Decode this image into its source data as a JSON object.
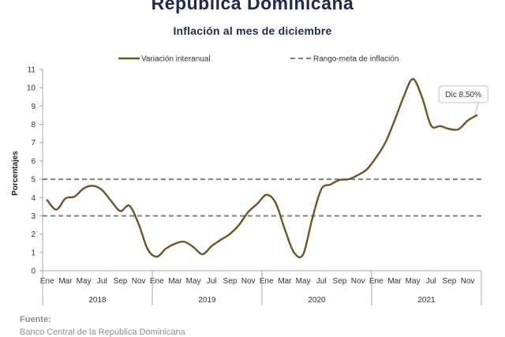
{
  "header": {
    "title": "República Dominicana",
    "subtitle": "Inflación al mes de diciembre"
  },
  "footer": {
    "source_label": "Fuente:",
    "source_text": "Banco Central de la República Dominicana"
  },
  "colors": {
    "series": "#6e5427",
    "target": "#808080",
    "axis": "#a6a6a6",
    "title": "#1f2a4e"
  },
  "chart_data": {
    "type": "line",
    "ylabel": "Porcentajes",
    "ylim": [
      0,
      11
    ],
    "yticks": [
      0,
      1,
      2,
      3,
      4,
      5,
      6,
      7,
      8,
      9,
      10,
      11
    ],
    "grid": false,
    "legend_position": "top",
    "x_month_labels": [
      "Ene",
      "Mar",
      "May",
      "Jul",
      "Sep",
      "Nov"
    ],
    "years": [
      "2018",
      "2019",
      "2020",
      "2021"
    ],
    "series": [
      {
        "name": "Variación interanual",
        "style": "solid",
        "values": [
          3.86,
          3.34,
          3.95,
          4.05,
          4.5,
          4.64,
          4.41,
          3.81,
          3.26,
          3.55,
          2.56,
          1.17,
          0.77,
          1.21,
          1.48,
          1.58,
          1.29,
          0.9,
          1.35,
          1.69,
          2.01,
          2.51,
          3.21,
          3.66,
          4.15,
          3.7,
          2.26,
          1.0,
          0.89,
          2.84,
          4.46,
          4.71,
          4.96,
          5.0,
          5.23,
          5.55,
          6.2,
          7.0,
          8.2,
          9.5,
          10.48,
          9.5,
          7.94,
          7.9,
          7.75,
          7.73,
          8.2,
          8.5
        ]
      },
      {
        "name": "Rango-meta de inflación",
        "style": "dashed",
        "bands": [
          3,
          5
        ]
      }
    ],
    "annotation": {
      "text": "Dic 8.50%",
      "value": 8.5
    }
  }
}
